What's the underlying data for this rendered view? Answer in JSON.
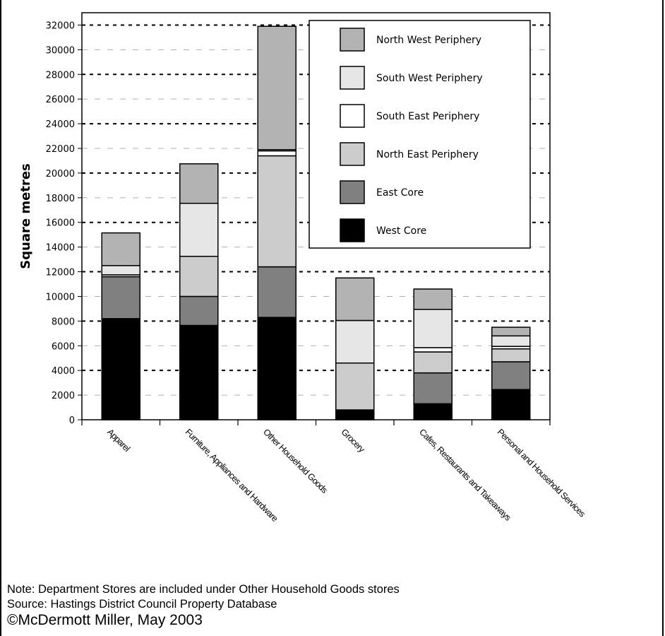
{
  "chart_data": {
    "type": "bar",
    "stacked": true,
    "ylabel": "Square metres",
    "xlabel": "",
    "ylim": [
      0,
      33000
    ],
    "yticks": [
      0,
      2000,
      4000,
      6000,
      8000,
      10000,
      12000,
      14000,
      16000,
      18000,
      20000,
      22000,
      24000,
      26000,
      28000,
      30000,
      32000
    ],
    "grid": "horizontal dashed",
    "legend_position": "top-right",
    "categories": [
      "Apparel",
      "Furniture, Appliances and Hardware",
      "Other Household Goods",
      "Grocery",
      "Cafes, Restaurants and Takeaways",
      "Personal and Household Services"
    ],
    "series": [
      {
        "name": "West Core",
        "color": "#000000",
        "values": [
          8200,
          7650,
          8300,
          800,
          1300,
          2450
        ]
      },
      {
        "name": "East Core",
        "color": "#808080",
        "values": [
          3400,
          2350,
          4100,
          0,
          2500,
          2250
        ]
      },
      {
        "name": "North East Periphery",
        "color": "#cccccc",
        "values": [
          0,
          3250,
          9000,
          3800,
          1700,
          1050
        ]
      },
      {
        "name": "South East Periphery",
        "color": "#ffffff",
        "values": [
          150,
          0,
          400,
          0,
          350,
          200
        ]
      },
      {
        "name": "South West Periphery",
        "color": "#e6e6e6",
        "values": [
          750,
          4300,
          100,
          3450,
          3100,
          850
        ]
      },
      {
        "name": "North West Periphery",
        "color": "#b3b3b3",
        "values": [
          2650,
          3200,
          10000,
          3450,
          1650,
          700
        ]
      }
    ]
  },
  "footer": {
    "note": "Note: Department Stores are included under Other Household Goods stores",
    "source": "Source: Hastings District Council Property Database",
    "copyright": "©McDermott Miller, May 2003"
  }
}
